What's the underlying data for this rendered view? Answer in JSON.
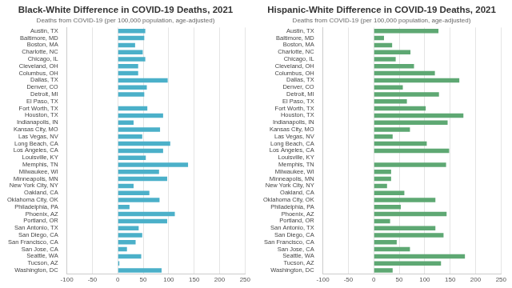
{
  "chart_data": [
    {
      "type": "bar",
      "orientation": "horizontal",
      "title": "Black-White Difference in COVID-19 Deaths, 2021",
      "subtitle": "Deaths from COVID-19 (per 100,000 population, age-adjusted)",
      "categories": [
        "Austin, TX",
        "Baltimore, MD",
        "Boston, MA",
        "Charlotte, NC",
        "Chicago, IL",
        "Cleveland, OH",
        "Columbus, OH",
        "Dallas, TX",
        "Denver, CO",
        "Detroit, MI",
        "El Paso, TX",
        "Fort Worth, TX",
        "Houston, TX",
        "Indianapolis, IN",
        "Kansas City, MO",
        "Las Vegas, NV",
        "Long Beach, CA",
        "Los Angeles, CA",
        "Louisville, KY",
        "Memphis, TN",
        "Milwaukee, WI",
        "Minneapolis, MN",
        "New York City, NY",
        "Oakland, CA",
        "Oklahoma City, OK",
        "Philadelphia, PA",
        "Phoenix, AZ",
        "Portland, OR",
        "San Antonio, TX",
        "San Diego, CA",
        "San Francisco, CA",
        "San Jose, CA",
        "Seattle, WA",
        "Tucson, AZ",
        "Washington, DC"
      ],
      "values": [
        54,
        52,
        34,
        49,
        54,
        40,
        40,
        98,
        57,
        52,
        null,
        58,
        89,
        31,
        83,
        48,
        103,
        89,
        55,
        138,
        81,
        97,
        31,
        62,
        82,
        23,
        112,
        97,
        41,
        48,
        35,
        18,
        46,
        3,
        86
      ],
      "color": "#4bb0c9",
      "xlim": [
        -100,
        250
      ],
      "xticks": [
        -100,
        -50,
        0,
        50,
        100,
        150,
        200,
        250
      ],
      "grid": true
    },
    {
      "type": "bar",
      "orientation": "horizontal",
      "title": "Hispanic-White Difference in COVID-19 Deaths, 2021",
      "subtitle": "Deaths from COVID-19 (per 100,000 population, age-adjusted)",
      "categories": [
        "Austin, TX",
        "Baltimore, MD",
        "Boston, MA",
        "Charlotte, NC",
        "Chicago, IL",
        "Cleveland, OH",
        "Columbus, OH",
        "Dallas, TX",
        "Denver, CO",
        "Detroit, MI",
        "El Paso, TX",
        "Fort Worth, TX",
        "Houston, TX",
        "Indianapolis, IN",
        "Kansas City, MO",
        "Las Vegas, NV",
        "Long Beach, CA",
        "Los Angeles, CA",
        "Louisville, KY",
        "Memphis, TN",
        "Milwaukee, WI",
        "Minneapolis, MN",
        "New York City, NY",
        "Oakland, CA",
        "Oklahoma City, OK",
        "Philadelphia, PA",
        "Phoenix, AZ",
        "Portland, OR",
        "San Antonio, TX",
        "San Diego, CA",
        "San Francisco, CA",
        "San Jose, CA",
        "Seattle, WA",
        "Tucson, AZ",
        "Washington, DC"
      ],
      "values": [
        127,
        20,
        36,
        72,
        43,
        79,
        120,
        168,
        57,
        128,
        65,
        102,
        176,
        145,
        71,
        37,
        104,
        148,
        null,
        142,
        34,
        34,
        26,
        60,
        121,
        53,
        143,
        32,
        121,
        137,
        45,
        71,
        179,
        132,
        37
      ],
      "color": "#5ea873",
      "xlim": [
        -100,
        250
      ],
      "xticks": [
        -100,
        -50,
        0,
        50,
        100,
        150,
        200,
        250
      ],
      "grid": true
    }
  ]
}
